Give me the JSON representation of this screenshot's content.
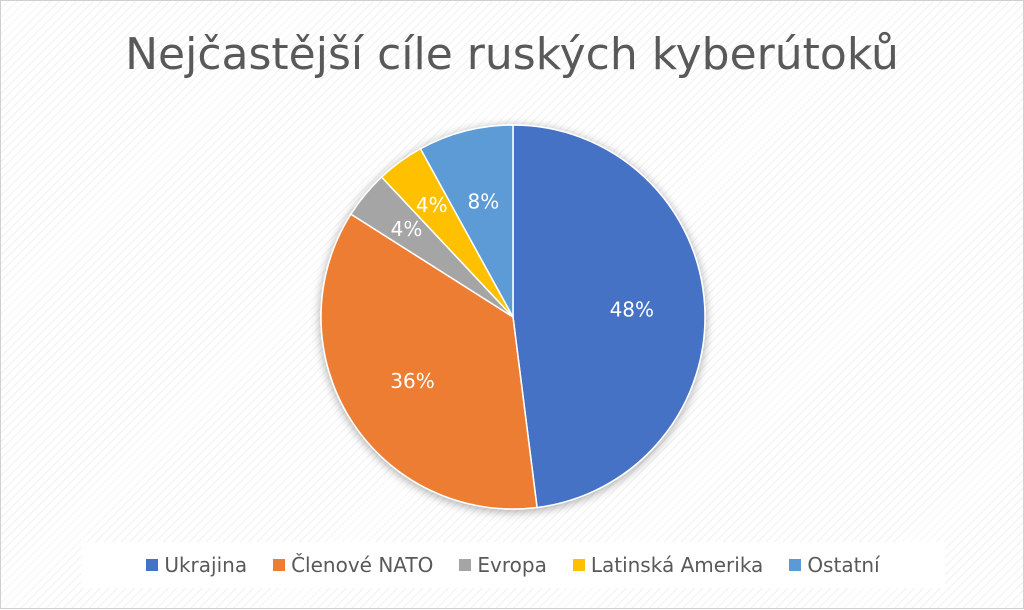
{
  "chart_data": {
    "type": "pie",
    "title": "Nejčastější cíle ruských kyberútoků",
    "legend_position": "bottom",
    "slices": [
      {
        "label": "Ukrajina",
        "value": 48,
        "display": "48%",
        "color": "#4472C4"
      },
      {
        "label": "Členové NATO",
        "value": 36,
        "display": "36%",
        "color": "#ED7D31"
      },
      {
        "label": "Evropa",
        "value": 4,
        "display": "4%",
        "color": "#A5A5A5"
      },
      {
        "label": "Latinská Amerika",
        "value": 4,
        "display": "4%",
        "color": "#FFC000"
      },
      {
        "label": "Ostatní",
        "value": 8,
        "display": "8%",
        "color": "#5B9BD5"
      }
    ]
  }
}
